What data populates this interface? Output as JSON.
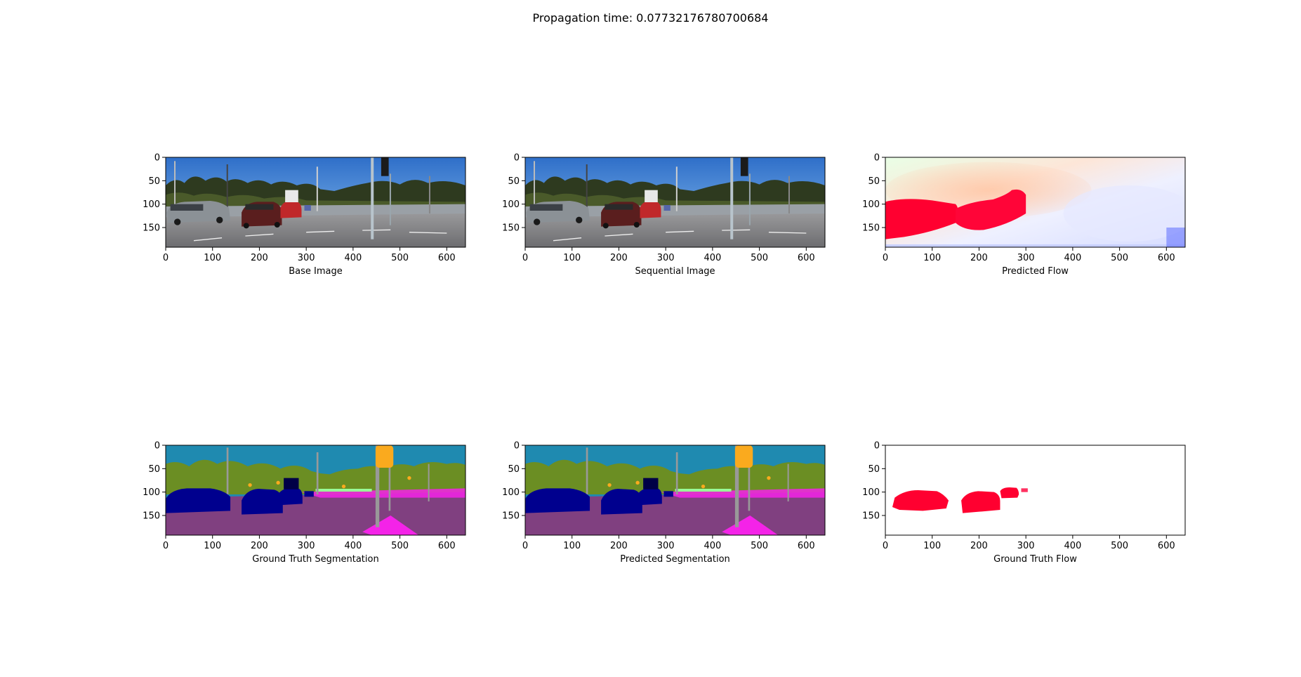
{
  "figure": {
    "suptitle": "Propagation time: 0.07732176780700684"
  },
  "chart_data": [
    {
      "type": "image",
      "xlabel": "Base Image",
      "xlim": [
        0,
        640
      ],
      "ylim": [
        192,
        0
      ],
      "xticks": [
        0,
        100,
        200,
        300,
        400,
        500,
        600
      ],
      "yticks": [
        0,
        50,
        100,
        150
      ],
      "content": "street scene photo"
    },
    {
      "type": "image",
      "xlabel": "Sequential Image",
      "xlim": [
        0,
        640
      ],
      "ylim": [
        192,
        0
      ],
      "xticks": [
        0,
        100,
        200,
        300,
        400,
        500,
        600
      ],
      "yticks": [
        0,
        50,
        100,
        150
      ],
      "content": "street scene photo"
    },
    {
      "type": "image",
      "xlabel": "Predicted Flow",
      "xlim": [
        0,
        640
      ],
      "ylim": [
        192,
        0
      ],
      "xticks": [
        0,
        100,
        200,
        300,
        400,
        500,
        600
      ],
      "yticks": [
        0,
        50,
        100,
        150
      ],
      "content": "optical flow color visualization"
    },
    {
      "type": "image",
      "xlabel": "Ground Truth Segmentation",
      "xlim": [
        0,
        640
      ],
      "ylim": [
        192,
        0
      ],
      "xticks": [
        0,
        100,
        200,
        300,
        400,
        500,
        600
      ],
      "yticks": [
        0,
        50,
        100,
        150
      ],
      "content": "semantic segmentation map"
    },
    {
      "type": "image",
      "xlabel": "Predicted Segmentation",
      "xlim": [
        0,
        640
      ],
      "ylim": [
        192,
        0
      ],
      "xticks": [
        0,
        100,
        200,
        300,
        400,
        500,
        600
      ],
      "yticks": [
        0,
        50,
        100,
        150
      ],
      "content": "semantic segmentation map"
    },
    {
      "type": "image",
      "xlabel": "Ground Truth Flow",
      "xlim": [
        0,
        640
      ],
      "ylim": [
        192,
        0
      ],
      "xticks": [
        0,
        100,
        200,
        300,
        400,
        500,
        600
      ],
      "yticks": [
        0,
        50,
        100,
        150
      ],
      "content": "sparse flow map"
    }
  ],
  "colors": {
    "sky": "#4a8fd8",
    "road": "#7d7d82",
    "seg_sky": "#1f8ab0",
    "seg_veg": "#6b8e23",
    "seg_road": "#804080",
    "seg_car": "#00008e",
    "seg_sidewalk": "#f423e8",
    "seg_pole": "#999999",
    "seg_light": "#faaa1e",
    "flow_red": "#ff0030"
  }
}
